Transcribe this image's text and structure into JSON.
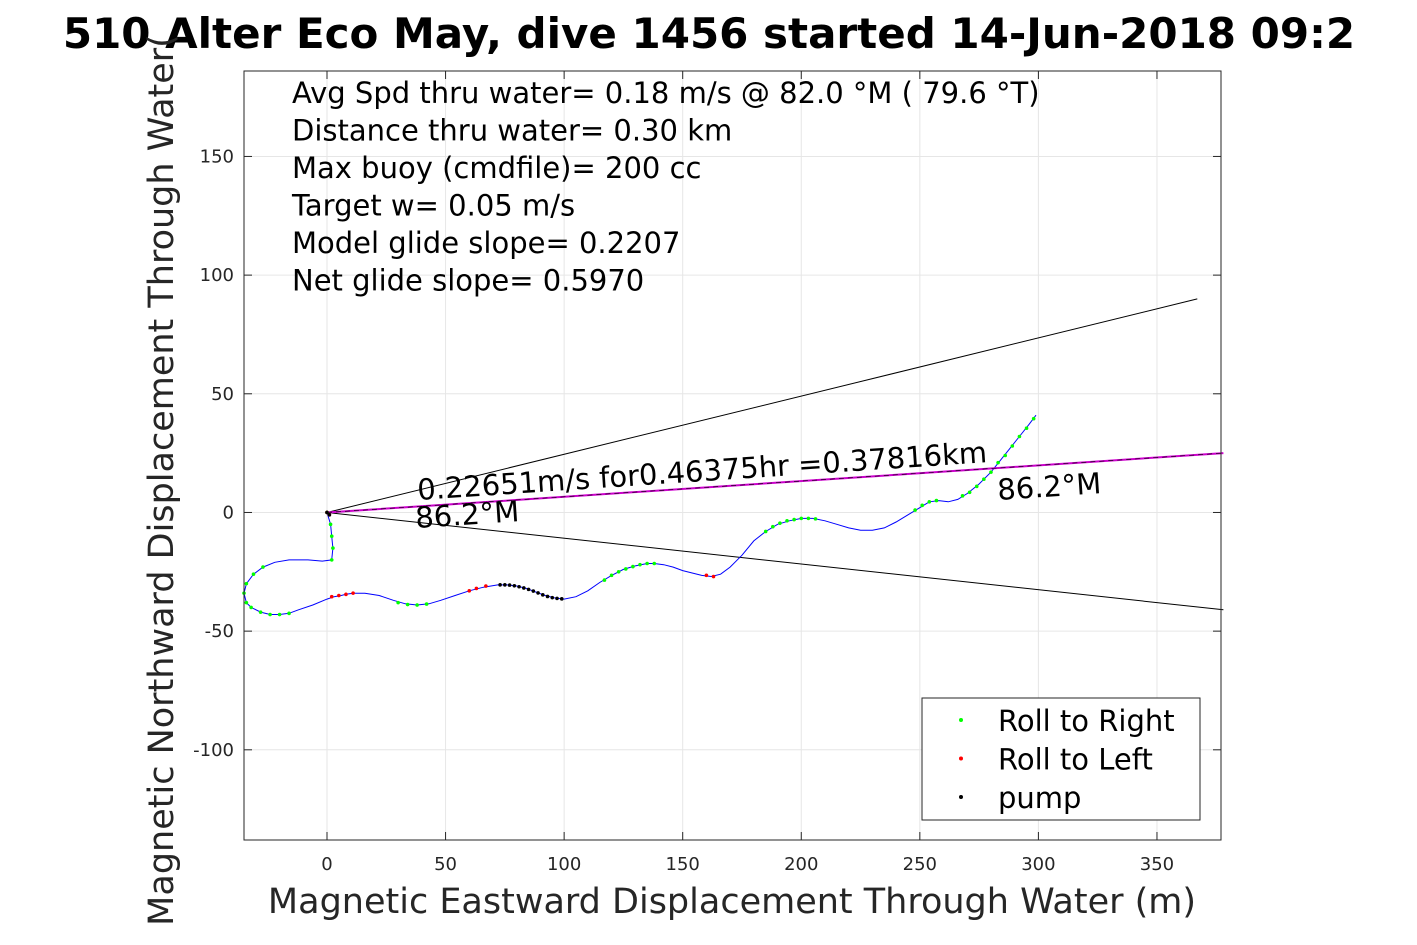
{
  "chart_data": {
    "type": "line",
    "title": "510 Alter Eco May, dive 1456 started 14-Jun-2018 09:2",
    "xlabel": "Magnetic Eastward Displacement Through Water (m)",
    "ylabel": "Magnetic Northward Displacement Through Water(",
    "xlim": [
      -35,
      377
    ],
    "ylim": [
      -138,
      186
    ],
    "xticks": [
      0,
      50,
      100,
      150,
      200,
      250,
      300,
      350
    ],
    "yticks": [
      -100,
      -50,
      0,
      50,
      100,
      150
    ],
    "xtick_labels": [
      "0",
      "50",
      "100",
      "150",
      "200",
      "250",
      "300",
      "350"
    ],
    "ytick_labels": [
      "-100",
      "-50",
      "0",
      "50",
      "100",
      "150"
    ],
    "grid": true,
    "legend_position": "bottom-right",
    "info_lines": [
      "Avg Spd thru water=  0.18 m/s @  82.0 °M ( 79.6 °T)",
      "Distance thru water=  0.30 km",
      "Max buoy (cmdfile)= 200 cc",
      "Target w= 0.05 m/s",
      "Model glide slope= 0.2207",
      "Net glide slope= 0.5970"
    ],
    "annotations": {
      "current_label": "0.22651m/s for0.46375hr =0.37816km",
      "heading_left": "86.2°M",
      "heading_right": "86.2°M"
    },
    "series": [
      {
        "name": "track",
        "color": "#0000ff",
        "points": [
          [
            0,
            0
          ],
          [
            1.5,
            -5
          ],
          [
            2,
            -10
          ],
          [
            2.5,
            -15
          ],
          [
            2,
            -20
          ],
          [
            -2,
            -20.5
          ],
          [
            -8,
            -20
          ],
          [
            -16,
            -20
          ],
          [
            -22,
            -21
          ],
          [
            -27,
            -23
          ],
          [
            -31,
            -26
          ],
          [
            -34,
            -30
          ],
          [
            -35,
            -34
          ],
          [
            -34,
            -38
          ],
          [
            -32,
            -40
          ],
          [
            -28,
            -42
          ],
          [
            -24,
            -43
          ],
          [
            -20,
            -43
          ],
          [
            -16,
            -42.5
          ],
          [
            -12,
            -41
          ],
          [
            -6,
            -39
          ],
          [
            0,
            -36.5
          ],
          [
            3,
            -35.5
          ],
          [
            6,
            -35
          ],
          [
            8,
            -34.5
          ],
          [
            11,
            -34
          ],
          [
            16,
            -34
          ],
          [
            22,
            -35
          ],
          [
            28,
            -37
          ],
          [
            33,
            -38.5
          ],
          [
            38,
            -39
          ],
          [
            43,
            -38.5
          ],
          [
            48,
            -37
          ],
          [
            54,
            -35
          ],
          [
            60,
            -33
          ],
          [
            66,
            -31.5
          ],
          [
            72,
            -30.5
          ],
          [
            76,
            -30.5
          ],
          [
            80,
            -31
          ],
          [
            84,
            -32
          ],
          [
            88,
            -33.5
          ],
          [
            92,
            -35
          ],
          [
            96,
            -36
          ],
          [
            100,
            -36.5
          ],
          [
            105,
            -35.5
          ],
          [
            110,
            -33
          ],
          [
            115,
            -29.5
          ],
          [
            120,
            -26.5
          ],
          [
            125,
            -24
          ],
          [
            130,
            -22.5
          ],
          [
            135,
            -21.5
          ],
          [
            138,
            -21.5
          ],
          [
            142,
            -22
          ],
          [
            146,
            -23
          ],
          [
            150,
            -24.5
          ],
          [
            154,
            -25.5
          ],
          [
            158,
            -26.5
          ],
          [
            162,
            -27
          ],
          [
            166,
            -26
          ],
          [
            170,
            -23
          ],
          [
            175,
            -18
          ],
          [
            180,
            -12
          ],
          [
            185,
            -8
          ],
          [
            190,
            -5
          ],
          [
            195,
            -3.5
          ],
          [
            200,
            -2.5
          ],
          [
            205,
            -2.5
          ],
          [
            210,
            -3.5
          ],
          [
            215,
            -5
          ],
          [
            220,
            -6.5
          ],
          [
            225,
            -7.5
          ],
          [
            230,
            -7.5
          ],
          [
            235,
            -6.5
          ],
          [
            240,
            -4
          ],
          [
            245,
            -1
          ],
          [
            250,
            2
          ],
          [
            254,
            4.5
          ],
          [
            258,
            5
          ],
          [
            262,
            4.5
          ],
          [
            266,
            5.5
          ],
          [
            270,
            8
          ],
          [
            275,
            12
          ],
          [
            280,
            17
          ],
          [
            284,
            22
          ],
          [
            288,
            27
          ],
          [
            292,
            32
          ],
          [
            296,
            37
          ],
          [
            299,
            41
          ]
        ]
      },
      {
        "name": "current-line",
        "color": "#cc00cc",
        "points": [
          [
            0,
            0
          ],
          [
            378,
            25
          ]
        ]
      },
      {
        "name": "cone-upper",
        "color": "#000000",
        "points": [
          [
            0,
            0
          ],
          [
            367,
            90
          ]
        ]
      },
      {
        "name": "cone-lower",
        "color": "#000000",
        "points": [
          [
            0,
            0
          ],
          [
            378,
            -41
          ]
        ]
      },
      {
        "name": "Roll to Right",
        "color": "#00ff00",
        "marker": "dot",
        "points": [
          [
            0,
            0
          ],
          [
            1.5,
            -5
          ],
          [
            2,
            -10
          ],
          [
            2.5,
            -15
          ],
          [
            2,
            -20
          ],
          [
            -27,
            -23
          ],
          [
            -31,
            -26
          ],
          [
            -34,
            -30
          ],
          [
            -35,
            -34
          ],
          [
            -34,
            -38
          ],
          [
            -32,
            -40
          ],
          [
            -28,
            -42
          ],
          [
            -24,
            -43
          ],
          [
            -20,
            -43
          ],
          [
            -16,
            -42.5
          ],
          [
            30,
            -38
          ],
          [
            34,
            -38.8
          ],
          [
            38,
            -39
          ],
          [
            42,
            -38.6
          ],
          [
            117,
            -28.5
          ],
          [
            120,
            -26.5
          ],
          [
            123,
            -25
          ],
          [
            126,
            -23.8
          ],
          [
            129,
            -22.8
          ],
          [
            132,
            -22
          ],
          [
            135,
            -21.5
          ],
          [
            138,
            -21.5
          ],
          [
            185,
            -8
          ],
          [
            188,
            -6
          ],
          [
            191,
            -4.5
          ],
          [
            194,
            -3.5
          ],
          [
            197,
            -3
          ],
          [
            200,
            -2.5
          ],
          [
            203,
            -2.5
          ],
          [
            206,
            -2.7
          ],
          [
            248,
            1
          ],
          [
            251,
            3
          ],
          [
            254,
            4.5
          ],
          [
            257,
            5
          ],
          [
            268,
            7
          ],
          [
            271,
            8.5
          ],
          [
            274,
            11
          ],
          [
            277,
            14
          ],
          [
            280,
            17
          ],
          [
            283,
            21
          ],
          [
            286,
            24
          ],
          [
            289,
            28
          ],
          [
            292,
            32
          ],
          [
            295,
            35.5
          ],
          [
            298,
            39.5
          ]
        ]
      },
      {
        "name": "Roll to Left",
        "color": "#ff0000",
        "marker": "dot",
        "points": [
          [
            0,
            0
          ],
          [
            1,
            -1
          ],
          [
            2,
            -35.5
          ],
          [
            5,
            -35
          ],
          [
            8,
            -34.5
          ],
          [
            11,
            -34
          ],
          [
            60,
            -33
          ],
          [
            63,
            -32
          ],
          [
            67,
            -31
          ],
          [
            160,
            -26.5
          ],
          [
            163,
            -27
          ]
        ]
      },
      {
        "name": "pump",
        "color": "#000000",
        "marker": "dot",
        "points": [
          [
            0,
            0
          ],
          [
            1,
            -1
          ],
          [
            73,
            -30.5
          ],
          [
            75,
            -30.5
          ],
          [
            77,
            -30.6
          ],
          [
            79,
            -30.9
          ],
          [
            81,
            -31.3
          ],
          [
            83,
            -31.8
          ],
          [
            85,
            -32.4
          ],
          [
            87,
            -33.1
          ],
          [
            89,
            -33.9
          ],
          [
            91,
            -34.7
          ],
          [
            93,
            -35.4
          ],
          [
            95,
            -35.9
          ],
          [
            97,
            -36.2
          ],
          [
            99,
            -36.4
          ]
        ]
      }
    ],
    "legend": [
      {
        "label": "Roll to Right",
        "color": "#00ff00"
      },
      {
        "label": "Roll to Left",
        "color": "#ff0000"
      },
      {
        "label": "pump",
        "color": "#000000"
      }
    ]
  }
}
